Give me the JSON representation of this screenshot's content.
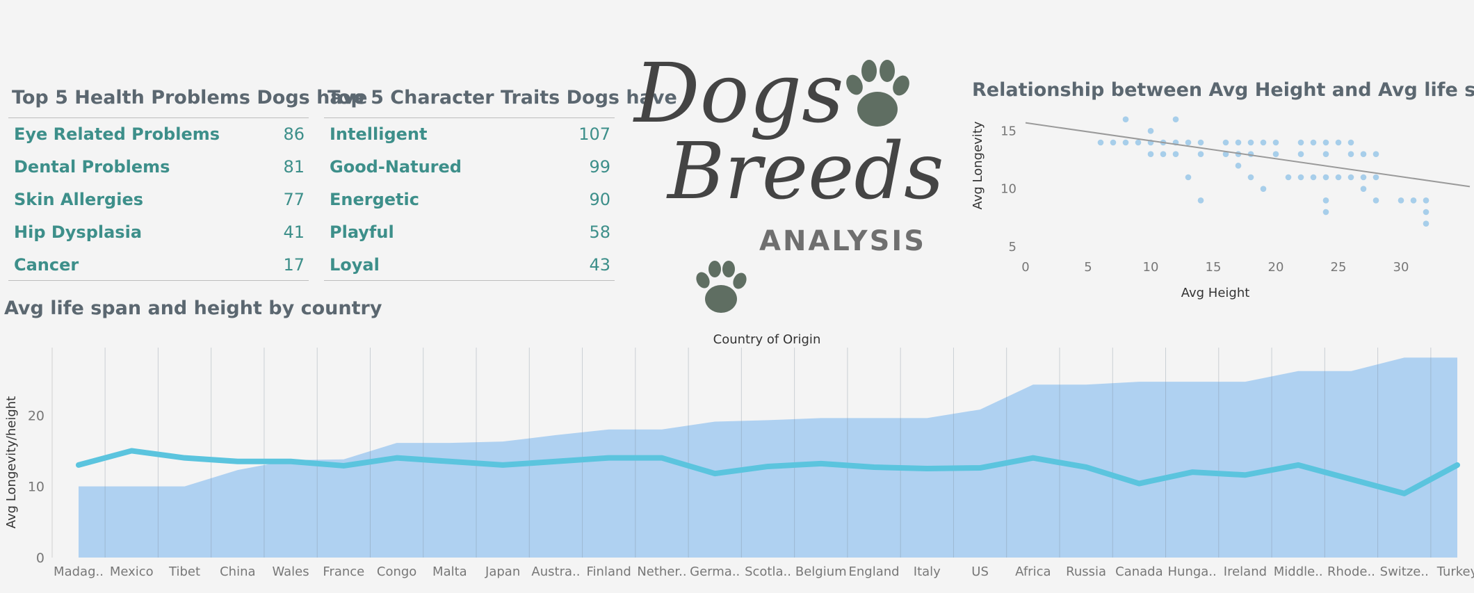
{
  "health": {
    "title": "Top 5 Health Problems Dogs have",
    "items": [
      {
        "label": "Eye Related Problems",
        "value": "86"
      },
      {
        "label": "Dental Problems",
        "value": "81"
      },
      {
        "label": "Skin Allergies",
        "value": "77"
      },
      {
        "label": "Hip Dysplasia",
        "value": "41"
      },
      {
        "label": "Cancer",
        "value": "17"
      }
    ]
  },
  "traits": {
    "title": "Top 5 Character Traits Dogs have",
    "items": [
      {
        "label": "Intelligent",
        "value": "107"
      },
      {
        "label": "Good-Natured",
        "value": "99"
      },
      {
        "label": "Energetic",
        "value": "90"
      },
      {
        "label": "Playful",
        "value": "58"
      },
      {
        "label": "Loyal",
        "value": "43"
      }
    ]
  },
  "logo": {
    "line1": "Dogs",
    "line2": "Breeds",
    "line3": "ANALYSIS"
  },
  "colors": {
    "area": "#a7cdf1",
    "line": "#5bc4de",
    "accent": "#3d8f8a",
    "title": "#5b6770",
    "paw": "#5f6e62"
  },
  "chart_data": [
    {
      "type": "scatter",
      "title": "Relationship between Avg Height and Avg life span",
      "xlabel": "Avg Height",
      "ylabel": "Avg Longevity",
      "xticks": [
        "0",
        "5",
        "10",
        "15",
        "20",
        "25",
        "30"
      ],
      "yticks": [
        "5",
        "10",
        "15"
      ],
      "xlim": [
        0,
        35
      ],
      "ylim": [
        3.5,
        17
      ],
      "trend": {
        "x1": 0,
        "y1": 15.7,
        "x2": 35.5,
        "y2": 10.2
      },
      "points": [
        [
          6,
          14
        ],
        [
          7,
          14
        ],
        [
          8,
          14
        ],
        [
          8,
          16
        ],
        [
          9,
          14
        ],
        [
          10,
          14
        ],
        [
          10,
          13
        ],
        [
          10,
          15
        ],
        [
          11,
          14
        ],
        [
          11,
          13
        ],
        [
          12,
          14
        ],
        [
          12,
          13
        ],
        [
          12,
          16
        ],
        [
          13,
          14
        ],
        [
          13,
          11
        ],
        [
          14,
          14
        ],
        [
          14,
          13
        ],
        [
          14,
          9
        ],
        [
          16,
          14
        ],
        [
          16,
          13
        ],
        [
          17,
          13
        ],
        [
          17,
          14
        ],
        [
          17,
          12
        ],
        [
          18,
          14
        ],
        [
          18,
          13
        ],
        [
          18,
          11
        ],
        [
          19,
          14
        ],
        [
          19,
          10
        ],
        [
          20,
          14
        ],
        [
          20,
          13
        ],
        [
          21,
          11
        ],
        [
          22,
          14
        ],
        [
          22,
          13
        ],
        [
          22,
          11
        ],
        [
          23,
          14
        ],
        [
          23,
          11
        ],
        [
          24,
          14
        ],
        [
          24,
          13
        ],
        [
          24,
          11
        ],
        [
          24,
          9
        ],
        [
          24,
          8
        ],
        [
          25,
          14
        ],
        [
          25,
          11
        ],
        [
          26,
          14
        ],
        [
          26,
          13
        ],
        [
          26,
          11
        ],
        [
          27,
          13
        ],
        [
          27,
          11
        ],
        [
          27,
          10
        ],
        [
          28,
          13
        ],
        [
          28,
          11
        ],
        [
          28,
          9
        ],
        [
          30,
          9
        ],
        [
          31,
          9
        ],
        [
          32,
          9
        ],
        [
          32,
          8
        ],
        [
          32,
          7
        ]
      ]
    },
    {
      "type": "area",
      "title": "Avg life span and height by country",
      "xlabel": "Country of Origin",
      "ylabel": "Avg Longevity/height",
      "yticks": [
        "0",
        "10",
        "20"
      ],
      "ylim": [
        0,
        29.5
      ],
      "categories": [
        "Madag..",
        "Mexico",
        "Tibet",
        "China",
        "Wales",
        "France",
        "Congo",
        "Malta",
        "Japan",
        "Austra..",
        "Finland",
        "Nether..",
        "Germa..",
        "Scotla..",
        "Belgium",
        "England",
        "Italy",
        "US",
        "Africa",
        "Russia",
        "Canada",
        "Hunga..",
        "Ireland",
        "Middle..",
        "Rhode..",
        "Switze..",
        "Turkey"
      ],
      "series": [
        {
          "kind": "area",
          "values": [
            10,
            10,
            10,
            12.3,
            13.7,
            13.8,
            16.1,
            16.1,
            16.3,
            17.2,
            18.0,
            18.0,
            19.1,
            19.3,
            19.6,
            19.6,
            19.6,
            20.8,
            24.3,
            24.3,
            24.7,
            24.7,
            24.7,
            26.2,
            26.2,
            28.1,
            28.1
          ]
        },
        {
          "kind": "line",
          "values": [
            13.0,
            15.0,
            14.0,
            13.5,
            13.5,
            12.9,
            14.0,
            13.5,
            13.0,
            13.5,
            14.0,
            14.0,
            11.8,
            12.8,
            13.2,
            12.7,
            12.5,
            12.6,
            14.0,
            12.7,
            10.4,
            12.0,
            11.6,
            13.0,
            11.0,
            9.0,
            13.0
          ]
        }
      ]
    }
  ]
}
